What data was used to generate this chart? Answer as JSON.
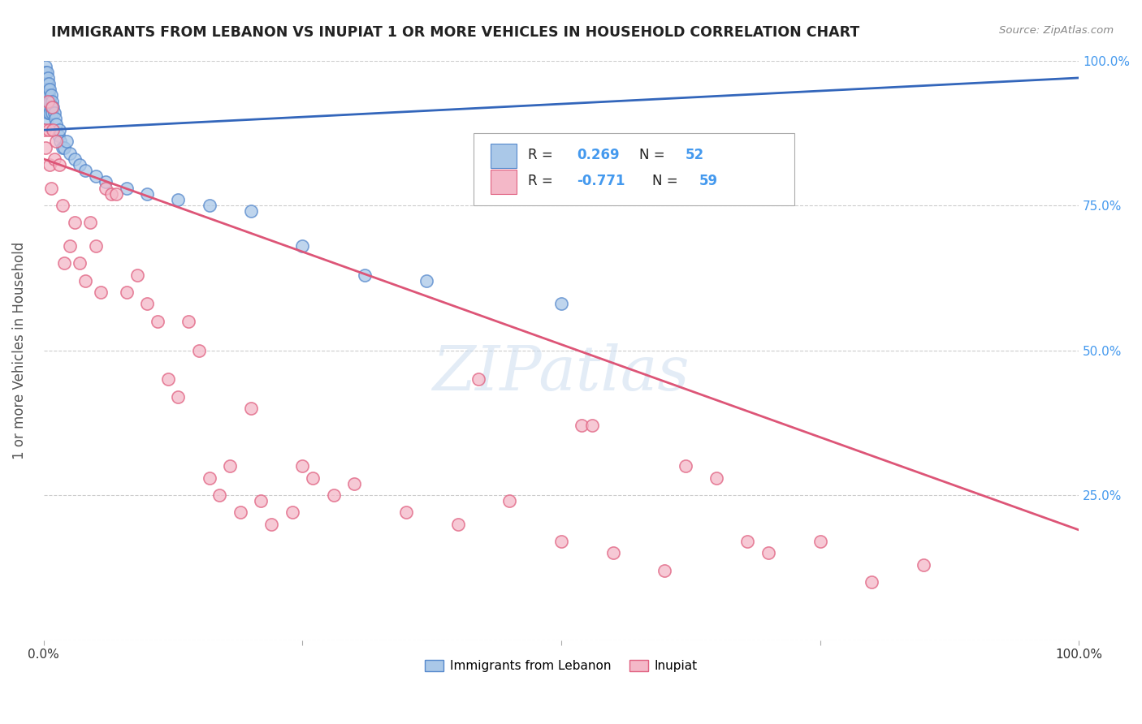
{
  "title": "IMMIGRANTS FROM LEBANON VS INUPIAT 1 OR MORE VEHICLES IN HOUSEHOLD CORRELATION CHART",
  "source": "Source: ZipAtlas.com",
  "ylabel": "1 or more Vehicles in Household",
  "xlim": [
    0.0,
    1.0
  ],
  "ylim": [
    0.0,
    1.0
  ],
  "ytick_labels": [
    "",
    "25.0%",
    "50.0%",
    "75.0%",
    "100.0%"
  ],
  "ytick_values": [
    0.0,
    0.25,
    0.5,
    0.75,
    1.0
  ],
  "legend_label_blue": "Immigrants from Lebanon",
  "legend_label_pink": "Inupiat",
  "blue_color": "#aac8e8",
  "blue_edge_color": "#5588cc",
  "pink_color": "#f4b8c8",
  "pink_edge_color": "#e06080",
  "blue_line_color": "#3366bb",
  "pink_line_color": "#dd5577",
  "watermark": "ZIPatlas",
  "blue_scatter_x": [
    0.001,
    0.001,
    0.001,
    0.002,
    0.002,
    0.002,
    0.002,
    0.002,
    0.003,
    0.003,
    0.003,
    0.003,
    0.003,
    0.004,
    0.004,
    0.004,
    0.004,
    0.005,
    0.005,
    0.005,
    0.006,
    0.006,
    0.006,
    0.007,
    0.007,
    0.008,
    0.008,
    0.009,
    0.01,
    0.011,
    0.012,
    0.014,
    0.015,
    0.016,
    0.018,
    0.02,
    0.022,
    0.025,
    0.03,
    0.035,
    0.04,
    0.05,
    0.06,
    0.08,
    0.1,
    0.13,
    0.16,
    0.2,
    0.25,
    0.31,
    0.37,
    0.5
  ],
  "blue_scatter_y": [
    0.97,
    0.95,
    0.93,
    0.99,
    0.98,
    0.96,
    0.94,
    0.92,
    0.98,
    0.96,
    0.94,
    0.92,
    0.9,
    0.97,
    0.95,
    0.93,
    0.91,
    0.96,
    0.94,
    0.92,
    0.95,
    0.93,
    0.91,
    0.94,
    0.92,
    0.93,
    0.91,
    0.92,
    0.91,
    0.9,
    0.89,
    0.87,
    0.88,
    0.86,
    0.85,
    0.85,
    0.86,
    0.84,
    0.83,
    0.82,
    0.81,
    0.8,
    0.79,
    0.78,
    0.77,
    0.76,
    0.75,
    0.74,
    0.68,
    0.63,
    0.62,
    0.58
  ],
  "pink_scatter_x": [
    0.001,
    0.002,
    0.004,
    0.005,
    0.006,
    0.007,
    0.008,
    0.009,
    0.01,
    0.012,
    0.015,
    0.018,
    0.02,
    0.025,
    0.03,
    0.035,
    0.04,
    0.045,
    0.05,
    0.055,
    0.06,
    0.065,
    0.07,
    0.08,
    0.09,
    0.1,
    0.11,
    0.12,
    0.13,
    0.14,
    0.15,
    0.16,
    0.17,
    0.18,
    0.19,
    0.2,
    0.21,
    0.22,
    0.24,
    0.25,
    0.26,
    0.28,
    0.3,
    0.35,
    0.4,
    0.42,
    0.45,
    0.5,
    0.52,
    0.53,
    0.55,
    0.6,
    0.62,
    0.65,
    0.68,
    0.7,
    0.75,
    0.8,
    0.85
  ],
  "pink_scatter_y": [
    0.88,
    0.85,
    0.93,
    0.88,
    0.82,
    0.78,
    0.92,
    0.88,
    0.83,
    0.86,
    0.82,
    0.75,
    0.65,
    0.68,
    0.72,
    0.65,
    0.62,
    0.72,
    0.68,
    0.6,
    0.78,
    0.77,
    0.77,
    0.6,
    0.63,
    0.58,
    0.55,
    0.45,
    0.42,
    0.55,
    0.5,
    0.28,
    0.25,
    0.3,
    0.22,
    0.4,
    0.24,
    0.2,
    0.22,
    0.3,
    0.28,
    0.25,
    0.27,
    0.22,
    0.2,
    0.45,
    0.24,
    0.17,
    0.37,
    0.37,
    0.15,
    0.12,
    0.3,
    0.28,
    0.17,
    0.15,
    0.17,
    0.1,
    0.13
  ],
  "blue_line_x0": 0.0,
  "blue_line_y0": 0.88,
  "blue_line_x1": 1.0,
  "blue_line_y1": 0.97,
  "pink_line_x0": 0.0,
  "pink_line_y0": 0.83,
  "pink_line_x1": 1.0,
  "pink_line_y1": 0.19,
  "legend_r_blue": "R = ",
  "legend_val_blue": "0.269",
  "legend_n_blue": "N = ",
  "legend_nval_blue": "52",
  "legend_r_pink": "R = ",
  "legend_val_pink": "-0.771",
  "legend_n_pink": "N = ",
  "legend_nval_pink": "59"
}
